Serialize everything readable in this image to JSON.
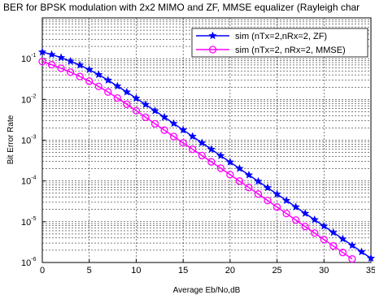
{
  "chart_data": {
    "type": "line",
    "title": "BER for BPSK modulation with 2x2 MIMO and ZF, MMSE equalizer (Rayleigh char",
    "xlabel": "Average Eb/No,dB",
    "ylabel": "Bit Error Rate",
    "x_scale": "linear",
    "y_scale": "log",
    "xlim": [
      0,
      35
    ],
    "ylim": [
      1e-06,
      1
    ],
    "x_ticks": [
      0,
      5,
      10,
      15,
      20,
      25,
      30,
      35
    ],
    "y_ticks": [
      {
        "value": 1e-06,
        "base": "10",
        "exp": "-6"
      },
      {
        "value": 1e-05,
        "base": "10",
        "exp": "-5"
      },
      {
        "value": 0.0001,
        "base": "10",
        "exp": "-4"
      },
      {
        "value": 0.001,
        "base": "10",
        "exp": "-3"
      },
      {
        "value": 0.01,
        "base": "10",
        "exp": "-2"
      },
      {
        "value": 0.1,
        "base": "10",
        "exp": "-1"
      }
    ],
    "grid": true,
    "legend_position": "top-right",
    "x": [
      0,
      1,
      2,
      3,
      4,
      5,
      6,
      7,
      8,
      9,
      10,
      11,
      12,
      13,
      14,
      15,
      16,
      17,
      18,
      19,
      20,
      21,
      22,
      23,
      24,
      25,
      26,
      27,
      28,
      29,
      30,
      31,
      32,
      33,
      34,
      35
    ],
    "series": [
      {
        "name": "sim (nTx=2,nRx=2, ZF)",
        "color": "#0000ff",
        "marker": "star",
        "values": [
          0.145,
          0.126,
          0.106,
          0.0865,
          0.0693,
          0.0537,
          0.0405,
          0.0296,
          0.0212,
          0.0152,
          0.0107,
          0.0075,
          0.00525,
          0.00367,
          0.00256,
          0.00178,
          0.00124,
          0.00086,
          0.000598,
          0.000416,
          0.00029,
          0.000202,
          0.00014,
          9.79e-05,
          6.82e-05,
          4.74e-05,
          3.31e-05,
          2.3e-05,
          1.6e-05,
          1.12e-05,
          7.8e-06,
          5.43e-06,
          3.78e-06,
          2.63e-06,
          1.83e-06,
          1.27e-06
        ]
      },
      {
        "name": "sim (nTx=2, nRx=2, MMSE)",
        "color": "#ff00ff",
        "marker": "circle",
        "values": [
          0.085,
          0.071,
          0.058,
          0.0465,
          0.0365,
          0.028,
          0.0208,
          0.0152,
          0.0108,
          0.0076,
          0.00528,
          0.00366,
          0.00253,
          0.00176,
          0.00123,
          0.000857,
          0.0006,
          0.00042,
          0.000294,
          0.000206,
          0.000143,
          9.93e-05,
          6.88e-05,
          4.77e-05,
          3.31e-05,
          2.29e-05,
          1.59e-05,
          1.1e-05,
          7.62e-06,
          5.28e-06,
          3.66e-06,
          2.54e-06,
          1.76e-06,
          1.22e-06,
          8.5e-07,
          5.9e-07
        ]
      }
    ]
  }
}
